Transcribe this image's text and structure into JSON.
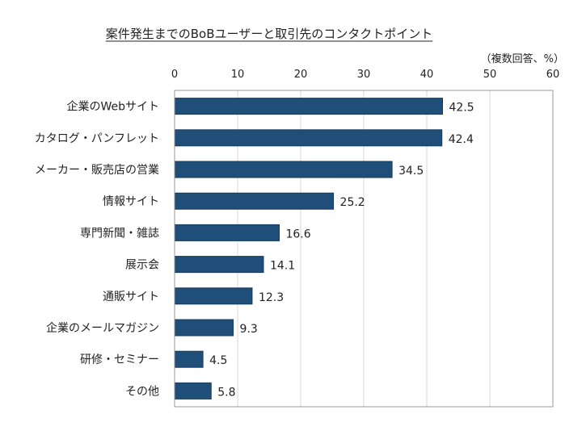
{
  "chart_data": {
    "type": "bar",
    "orientation": "horizontal",
    "title": "案件発生までのBoBユーザーと取引先のコンタクトポイント",
    "unit_note": "（複数回答、%）",
    "categories": [
      "企業のWebサイト",
      "カタログ・パンフレット",
      "メーカー・販売店の営業",
      "情報サイト",
      "専門新聞・雑誌",
      "展示会",
      "通販サイト",
      "企業のメールマガジン",
      "研修・セミナー",
      "その他"
    ],
    "values": [
      42.5,
      42.4,
      34.5,
      25.2,
      16.6,
      14.1,
      12.3,
      9.3,
      4.5,
      5.8
    ],
    "value_labels": [
      "42.5",
      "42.4",
      "34.5",
      "25.2",
      "16.6",
      "14.1",
      "12.3",
      "9.3",
      "4.5",
      "5.8"
    ],
    "xlim": [
      0,
      60
    ],
    "ticks": [
      "0",
      "10",
      "20",
      "30",
      "40",
      "50",
      "60"
    ],
    "tick_values": [
      0,
      10,
      20,
      30,
      40,
      50,
      60
    ],
    "axis_position": "top",
    "grid": true,
    "bar_color": "#1f4e79"
  }
}
